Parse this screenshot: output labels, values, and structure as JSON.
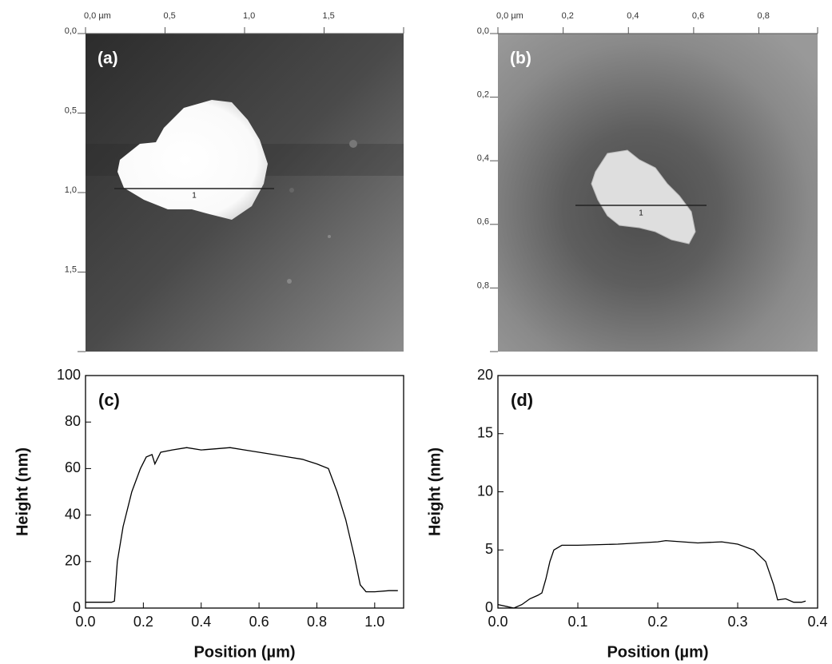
{
  "chart_data": [
    {
      "type": "afm-image",
      "label": "(a)",
      "profile_label": "1",
      "xlim": [
        0,
        2
      ],
      "xticks": [
        {
          "value": 0,
          "label": "0,0 µm"
        },
        {
          "value": 0.5,
          "label": "0,5"
        },
        {
          "value": 1.0,
          "label": "1,0"
        },
        {
          "value": 1.5,
          "label": "1,5"
        }
      ],
      "ylim": [
        0,
        2
      ],
      "yticks": [
        {
          "value": 0,
          "label": "0,0"
        },
        {
          "value": 0.5,
          "label": "0,5"
        },
        {
          "value": 1.0,
          "label": "1,0"
        },
        {
          "value": 1.5,
          "label": "1,5"
        }
      ]
    },
    {
      "type": "afm-image",
      "label": "(b)",
      "profile_label": "1",
      "xlim": [
        0,
        0.98
      ],
      "xticks": [
        {
          "value": 0,
          "label": "0,0 µm"
        },
        {
          "value": 0.2,
          "label": "0,2"
        },
        {
          "value": 0.4,
          "label": "0,4"
        },
        {
          "value": 0.6,
          "label": "0,6"
        },
        {
          "value": 0.8,
          "label": "0,8"
        }
      ],
      "ylim": [
        0,
        1
      ],
      "yticks": [
        {
          "value": 0,
          "label": "0,0"
        },
        {
          "value": 0.2,
          "label": "0,2"
        },
        {
          "value": 0.4,
          "label": "0,4"
        },
        {
          "value": 0.6,
          "label": "0,6"
        },
        {
          "value": 0.8,
          "label": "0,8"
        }
      ]
    },
    {
      "type": "line",
      "label": "(c)",
      "xlabel": "Position (µm)",
      "ylabel": "Height (nm)",
      "color": "#000000",
      "xlim": [
        0,
        1.1
      ],
      "xticks": [
        {
          "value": 0,
          "label": "0.0"
        },
        0.2,
        0.4,
        0.6,
        0.8,
        {
          "value": 1,
          "label": "1.0"
        }
      ],
      "ylim": [
        0,
        100
      ],
      "yticks": [
        0,
        20,
        40,
        60,
        80,
        100
      ],
      "x": [
        0,
        0.09,
        0.1,
        0.11,
        0.13,
        0.16,
        0.19,
        0.21,
        0.23,
        0.24,
        0.26,
        0.3,
        0.35,
        0.4,
        0.45,
        0.5,
        0.55,
        0.6,
        0.65,
        0.7,
        0.75,
        0.8,
        0.84,
        0.87,
        0.9,
        0.93,
        0.95,
        0.97,
        1.0,
        1.05,
        1.08
      ],
      "values": [
        2.5,
        2.5,
        3,
        20,
        35,
        50,
        60,
        65,
        66,
        62,
        67,
        68,
        69,
        68,
        68.5,
        69,
        68,
        67,
        66,
        65,
        64,
        62,
        60,
        50,
        38,
        22,
        10,
        7,
        7,
        7.5,
        7.5
      ]
    },
    {
      "type": "line",
      "label": "(d)",
      "xlabel": "Position (µm)",
      "ylabel": "Height (nm)",
      "color": "#000000",
      "xlim": [
        0,
        0.4
      ],
      "xticks": [
        {
          "value": 0,
          "label": "0.0"
        },
        0.1,
        0.2,
        0.3,
        0.4
      ],
      "ylim": [
        0,
        20
      ],
      "yticks": [
        0,
        5,
        10,
        15,
        20
      ],
      "x": [
        0,
        0.02,
        0.03,
        0.04,
        0.05,
        0.055,
        0.06,
        0.065,
        0.07,
        0.08,
        0.1,
        0.15,
        0.2,
        0.21,
        0.25,
        0.28,
        0.3,
        0.32,
        0.335,
        0.345,
        0.35,
        0.36,
        0.37,
        0.38,
        0.385
      ],
      "values": [
        0.3,
        0,
        0.3,
        0.8,
        1.1,
        1.3,
        2.5,
        4,
        5,
        5.4,
        5.4,
        5.5,
        5.7,
        5.8,
        5.6,
        5.7,
        5.5,
        5,
        4,
        2,
        0.7,
        0.8,
        0.5,
        0.5,
        0.6
      ]
    }
  ]
}
